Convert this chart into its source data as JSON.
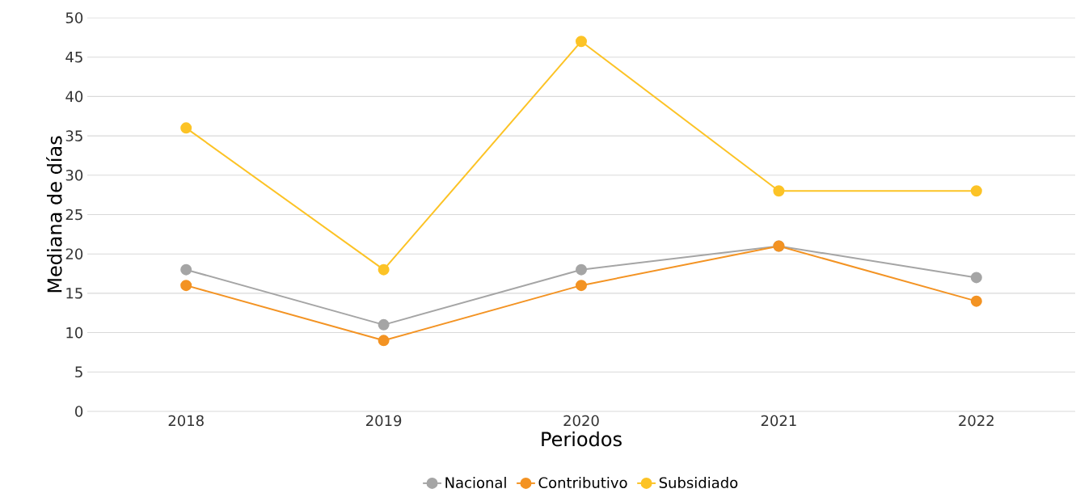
{
  "chart_data": {
    "type": "line",
    "xlabel": "Periodos",
    "ylabel": "Mediana de días",
    "categories": [
      "2018",
      "2019",
      "2020",
      "2021",
      "2022"
    ],
    "series": [
      {
        "name": "Nacional",
        "color": "#a5a5a5",
        "values": [
          18,
          11,
          18,
          21,
          17
        ]
      },
      {
        "name": "Contributivo",
        "color": "#f39323",
        "values": [
          16,
          9,
          16,
          21,
          14
        ]
      },
      {
        "name": "Subsidiado",
        "color": "#fcc326",
        "values": [
          36,
          18,
          47,
          28,
          28
        ]
      }
    ],
    "ylim": [
      0,
      50
    ],
    "yticks": [
      0,
      5,
      10,
      15,
      20,
      25,
      30,
      35,
      40,
      45,
      50
    ],
    "grid": "y",
    "legend": "bottom",
    "marker": "circle",
    "line_style": "solid"
  }
}
